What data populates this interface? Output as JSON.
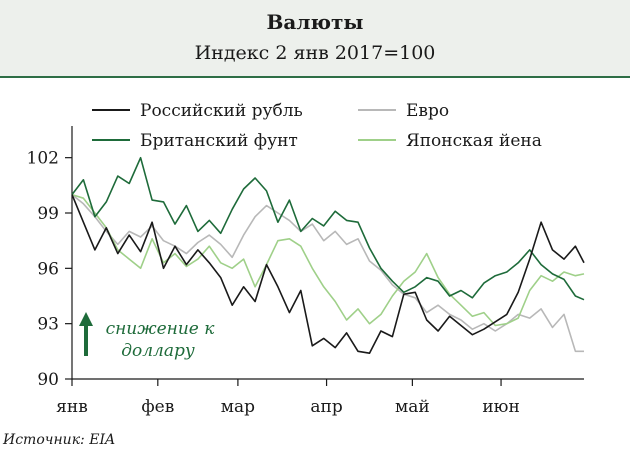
{
  "header": {
    "title": "Валюты",
    "subtitle": "Индекс 2 янв 2017=100"
  },
  "source": "Источник: EIA",
  "chart_data": {
    "type": "line",
    "title": "Валюты",
    "subtitle": "Индекс 2 янв 2017=100",
    "xlabel": "",
    "ylabel": "",
    "x_range": [
      "2017-01-02",
      "2017-06-30"
    ],
    "x_ticks": [
      {
        "date": "2017-01-01",
        "label": "янв"
      },
      {
        "date": "2017-02-01",
        "label": "фев"
      },
      {
        "date": "2017-03-01",
        "label": "мар"
      },
      {
        "date": "2017-04-01",
        "label": "апр"
      },
      {
        "date": "2017-05-01",
        "label": "май"
      },
      {
        "date": "2017-06-01",
        "label": "июн"
      }
    ],
    "ylim": [
      90,
      103.5
    ],
    "yticks": [
      90,
      93,
      96,
      99,
      102
    ],
    "grid": false,
    "legend": "top",
    "annotation": "снижение к доллару",
    "series": [
      {
        "name": "Российский рубль",
        "color": "#1a1a1a",
        "points": [
          [
            "2017-01-02",
            100.0
          ],
          [
            "2017-01-06",
            98.5
          ],
          [
            "2017-01-10",
            97.0
          ],
          [
            "2017-01-14",
            98.2
          ],
          [
            "2017-01-18",
            96.8
          ],
          [
            "2017-01-22",
            97.8
          ],
          [
            "2017-01-26",
            96.9
          ],
          [
            "2017-01-30",
            98.5
          ],
          [
            "2017-02-03",
            96.0
          ],
          [
            "2017-02-07",
            97.2
          ],
          [
            "2017-02-11",
            96.2
          ],
          [
            "2017-02-15",
            97.0
          ],
          [
            "2017-02-19",
            96.3
          ],
          [
            "2017-02-23",
            95.5
          ],
          [
            "2017-02-27",
            94.0
          ],
          [
            "2017-03-03",
            95.0
          ],
          [
            "2017-03-07",
            94.2
          ],
          [
            "2017-03-11",
            96.2
          ],
          [
            "2017-03-15",
            95.0
          ],
          [
            "2017-03-19",
            93.6
          ],
          [
            "2017-03-23",
            94.8
          ],
          [
            "2017-03-27",
            91.8
          ],
          [
            "2017-03-31",
            92.2
          ],
          [
            "2017-04-04",
            91.7
          ],
          [
            "2017-04-08",
            92.5
          ],
          [
            "2017-04-12",
            91.5
          ],
          [
            "2017-04-16",
            91.4
          ],
          [
            "2017-04-20",
            92.6
          ],
          [
            "2017-04-24",
            92.3
          ],
          [
            "2017-04-28",
            94.6
          ],
          [
            "2017-05-02",
            94.7
          ],
          [
            "2017-05-06",
            93.2
          ],
          [
            "2017-05-10",
            92.6
          ],
          [
            "2017-05-14",
            93.4
          ],
          [
            "2017-05-18",
            92.9
          ],
          [
            "2017-05-22",
            92.4
          ],
          [
            "2017-05-26",
            92.7
          ],
          [
            "2017-05-30",
            93.1
          ],
          [
            "2017-06-03",
            93.5
          ],
          [
            "2017-06-07",
            94.7
          ],
          [
            "2017-06-11",
            96.5
          ],
          [
            "2017-06-15",
            98.5
          ],
          [
            "2017-06-19",
            97.0
          ],
          [
            "2017-06-23",
            96.5
          ],
          [
            "2017-06-27",
            97.2
          ],
          [
            "2017-06-30",
            96.3
          ]
        ]
      },
      {
        "name": "Евро",
        "color": "#b8b8b8",
        "points": [
          [
            "2017-01-02",
            100.0
          ],
          [
            "2017-01-06",
            99.5
          ],
          [
            "2017-01-10",
            98.8
          ],
          [
            "2017-01-14",
            98.0
          ],
          [
            "2017-01-18",
            97.3
          ],
          [
            "2017-01-22",
            98.0
          ],
          [
            "2017-01-26",
            97.7
          ],
          [
            "2017-01-30",
            98.3
          ],
          [
            "2017-02-03",
            97.5
          ],
          [
            "2017-02-07",
            97.2
          ],
          [
            "2017-02-11",
            96.8
          ],
          [
            "2017-02-15",
            97.4
          ],
          [
            "2017-02-19",
            97.8
          ],
          [
            "2017-02-23",
            97.3
          ],
          [
            "2017-02-27",
            96.6
          ],
          [
            "2017-03-03",
            97.8
          ],
          [
            "2017-03-07",
            98.8
          ],
          [
            "2017-03-11",
            99.4
          ],
          [
            "2017-03-15",
            99.0
          ],
          [
            "2017-03-19",
            98.6
          ],
          [
            "2017-03-23",
            98.0
          ],
          [
            "2017-03-27",
            98.4
          ],
          [
            "2017-03-31",
            97.5
          ],
          [
            "2017-04-04",
            98.0
          ],
          [
            "2017-04-08",
            97.3
          ],
          [
            "2017-04-12",
            97.6
          ],
          [
            "2017-04-16",
            96.4
          ],
          [
            "2017-04-20",
            95.9
          ],
          [
            "2017-04-24",
            95.1
          ],
          [
            "2017-04-28",
            94.6
          ],
          [
            "2017-05-02",
            94.4
          ],
          [
            "2017-05-06",
            93.6
          ],
          [
            "2017-05-10",
            94.0
          ],
          [
            "2017-05-14",
            93.5
          ],
          [
            "2017-05-18",
            93.2
          ],
          [
            "2017-05-22",
            92.7
          ],
          [
            "2017-05-26",
            93.0
          ],
          [
            "2017-05-30",
            92.6
          ],
          [
            "2017-06-03",
            93.0
          ],
          [
            "2017-06-07",
            93.5
          ],
          [
            "2017-06-11",
            93.3
          ],
          [
            "2017-06-15",
            93.8
          ],
          [
            "2017-06-19",
            92.8
          ],
          [
            "2017-06-23",
            93.5
          ],
          [
            "2017-06-27",
            91.5
          ],
          [
            "2017-06-30",
            91.5
          ]
        ]
      },
      {
        "name": "Британский фунт",
        "color": "#1e6b3a",
        "points": [
          [
            "2017-01-02",
            100.0
          ],
          [
            "2017-01-06",
            100.8
          ],
          [
            "2017-01-10",
            98.8
          ],
          [
            "2017-01-14",
            99.6
          ],
          [
            "2017-01-18",
            101.0
          ],
          [
            "2017-01-22",
            100.6
          ],
          [
            "2017-01-26",
            102.0
          ],
          [
            "2017-01-30",
            99.7
          ],
          [
            "2017-02-03",
            99.6
          ],
          [
            "2017-02-07",
            98.4
          ],
          [
            "2017-02-11",
            99.4
          ],
          [
            "2017-02-15",
            98.0
          ],
          [
            "2017-02-19",
            98.6
          ],
          [
            "2017-02-23",
            97.9
          ],
          [
            "2017-02-27",
            99.2
          ],
          [
            "2017-03-03",
            100.3
          ],
          [
            "2017-03-07",
            100.9
          ],
          [
            "2017-03-11",
            100.2
          ],
          [
            "2017-03-15",
            98.5
          ],
          [
            "2017-03-19",
            99.7
          ],
          [
            "2017-03-23",
            98.0
          ],
          [
            "2017-03-27",
            98.7
          ],
          [
            "2017-03-31",
            98.3
          ],
          [
            "2017-04-04",
            99.1
          ],
          [
            "2017-04-08",
            98.6
          ],
          [
            "2017-04-12",
            98.5
          ],
          [
            "2017-04-16",
            97.1
          ],
          [
            "2017-04-20",
            96.0
          ],
          [
            "2017-04-24",
            95.3
          ],
          [
            "2017-04-28",
            94.7
          ],
          [
            "2017-05-02",
            95.0
          ],
          [
            "2017-05-06",
            95.5
          ],
          [
            "2017-05-10",
            95.3
          ],
          [
            "2017-05-14",
            94.5
          ],
          [
            "2017-05-18",
            94.8
          ],
          [
            "2017-05-22",
            94.4
          ],
          [
            "2017-05-26",
            95.2
          ],
          [
            "2017-05-30",
            95.6
          ],
          [
            "2017-06-03",
            95.8
          ],
          [
            "2017-06-07",
            96.3
          ],
          [
            "2017-06-11",
            97.0
          ],
          [
            "2017-06-15",
            96.2
          ],
          [
            "2017-06-19",
            95.7
          ],
          [
            "2017-06-23",
            95.4
          ],
          [
            "2017-06-27",
            94.5
          ],
          [
            "2017-06-30",
            94.3
          ]
        ]
      },
      {
        "name": "Японская йена",
        "color": "#9fd089",
        "points": [
          [
            "2017-01-02",
            100.0
          ],
          [
            "2017-01-06",
            99.8
          ],
          [
            "2017-01-10",
            99.0
          ],
          [
            "2017-01-14",
            98.2
          ],
          [
            "2017-01-18",
            97.0
          ],
          [
            "2017-01-22",
            96.5
          ],
          [
            "2017-01-26",
            96.0
          ],
          [
            "2017-01-30",
            97.6
          ],
          [
            "2017-02-03",
            96.3
          ],
          [
            "2017-02-07",
            96.8
          ],
          [
            "2017-02-11",
            96.1
          ],
          [
            "2017-02-15",
            96.5
          ],
          [
            "2017-02-19",
            97.2
          ],
          [
            "2017-02-23",
            96.3
          ],
          [
            "2017-02-27",
            96.0
          ],
          [
            "2017-03-03",
            96.5
          ],
          [
            "2017-03-07",
            95.0
          ],
          [
            "2017-03-11",
            96.2
          ],
          [
            "2017-03-15",
            97.5
          ],
          [
            "2017-03-19",
            97.6
          ],
          [
            "2017-03-23",
            97.2
          ],
          [
            "2017-03-27",
            96.0
          ],
          [
            "2017-03-31",
            95.0
          ],
          [
            "2017-04-04",
            94.2
          ],
          [
            "2017-04-08",
            93.2
          ],
          [
            "2017-04-12",
            93.8
          ],
          [
            "2017-04-16",
            93.0
          ],
          [
            "2017-04-20",
            93.5
          ],
          [
            "2017-04-24",
            94.5
          ],
          [
            "2017-04-28",
            95.3
          ],
          [
            "2017-05-02",
            95.8
          ],
          [
            "2017-05-06",
            96.8
          ],
          [
            "2017-05-10",
            95.5
          ],
          [
            "2017-05-14",
            94.6
          ],
          [
            "2017-05-18",
            94.0
          ],
          [
            "2017-05-22",
            93.4
          ],
          [
            "2017-05-26",
            93.6
          ],
          [
            "2017-05-30",
            92.9
          ],
          [
            "2017-06-03",
            93.0
          ],
          [
            "2017-06-07",
            93.3
          ],
          [
            "2017-06-11",
            94.8
          ],
          [
            "2017-06-15",
            95.6
          ],
          [
            "2017-06-19",
            95.3
          ],
          [
            "2017-06-23",
            95.8
          ],
          [
            "2017-06-27",
            95.6
          ],
          [
            "2017-06-30",
            95.7
          ]
        ]
      }
    ]
  }
}
